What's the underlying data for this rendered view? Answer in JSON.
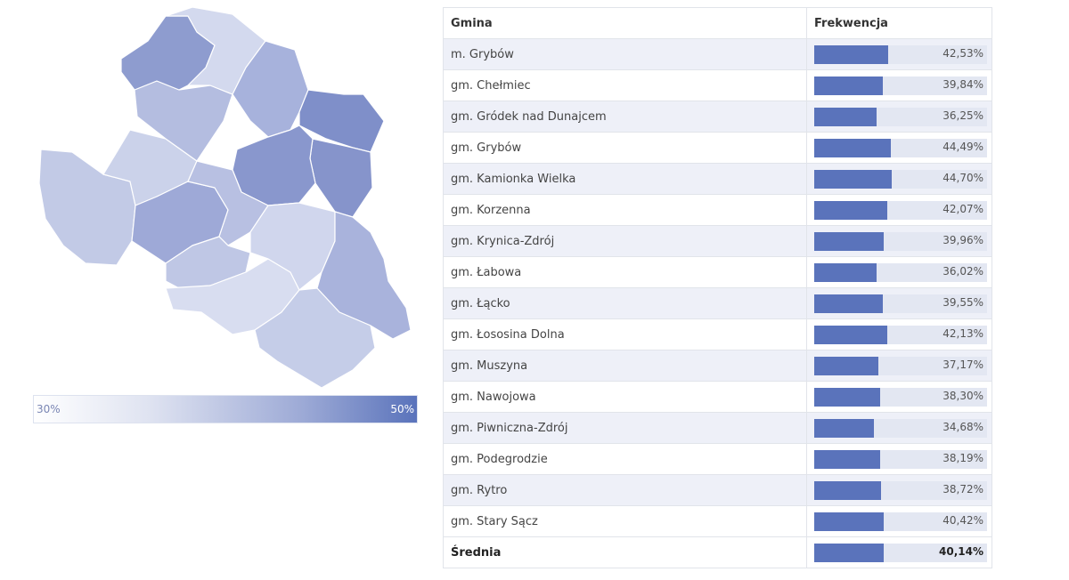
{
  "legend": {
    "min_label": "30%",
    "max_label": "50%",
    "min_value": 30,
    "max_value": 50,
    "color_low": "#ffffff",
    "color_high": "#5a73bb"
  },
  "table": {
    "col_name": "Gmina",
    "col_value": "Frekwencja",
    "bar_scale_max": 100,
    "rows": [
      {
        "name": "m. Grybów",
        "value": 42.53,
        "label": "42,53%"
      },
      {
        "name": "gm. Chełmiec",
        "value": 39.84,
        "label": "39,84%"
      },
      {
        "name": "gm. Gródek nad Dunajcem",
        "value": 36.25,
        "label": "36,25%"
      },
      {
        "name": "gm. Grybów",
        "value": 44.49,
        "label": "44,49%"
      },
      {
        "name": "gm. Kamionka Wielka",
        "value": 44.7,
        "label": "44,70%"
      },
      {
        "name": "gm. Korzenna",
        "value": 42.07,
        "label": "42,07%"
      },
      {
        "name": "gm. Krynica-Zdrój",
        "value": 39.96,
        "label": "39,96%"
      },
      {
        "name": "gm. Łabowa",
        "value": 36.02,
        "label": "36,02%"
      },
      {
        "name": "gm. Łącko",
        "value": 39.55,
        "label": "39,55%"
      },
      {
        "name": "gm. Łososina Dolna",
        "value": 42.13,
        "label": "42,13%"
      },
      {
        "name": "gm. Muszyna",
        "value": 37.17,
        "label": "37,17%"
      },
      {
        "name": "gm. Nawojowa",
        "value": 38.3,
        "label": "38,30%"
      },
      {
        "name": "gm. Piwniczna-Zdrój",
        "value": 34.68,
        "label": "34,68%"
      },
      {
        "name": "gm. Podegrodzie",
        "value": 38.19,
        "label": "38,19%"
      },
      {
        "name": "gm. Rytro",
        "value": 38.72,
        "label": "38,72%"
      },
      {
        "name": "gm. Stary Sącz",
        "value": 40.42,
        "label": "40,42%"
      }
    ],
    "average": {
      "name": "Średnia",
      "value": 40.14,
      "label": "40,14%"
    }
  }
}
